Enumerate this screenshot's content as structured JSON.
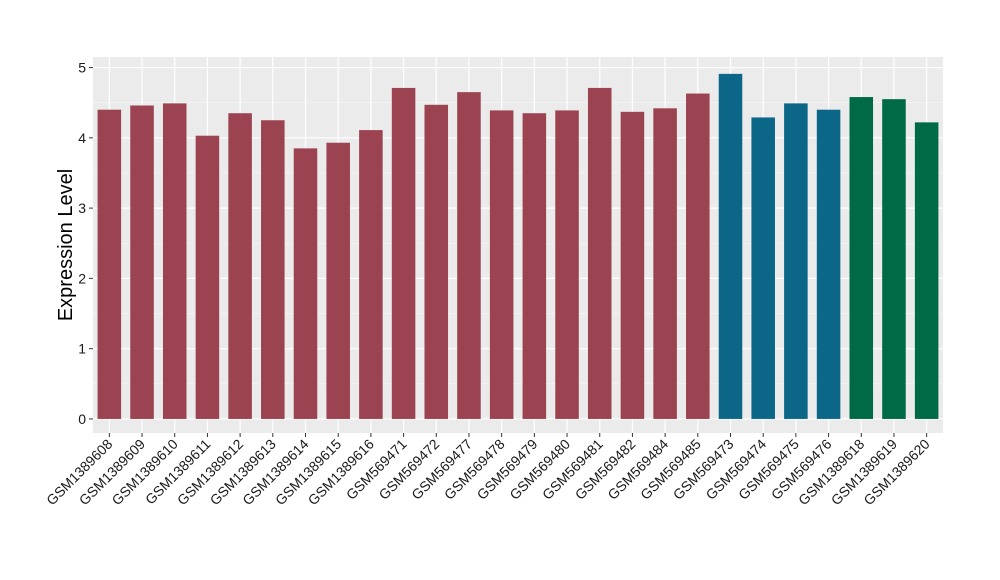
{
  "chart_data": {
    "type": "bar",
    "ylabel": "Expression Level",
    "xlabel": "",
    "ylim": [
      -0.2,
      5.15
    ],
    "yticks": [
      0,
      1,
      2,
      3,
      4,
      5
    ],
    "grid": true,
    "panel_background": "#ebebeb",
    "categories": [
      "GSM1389608",
      "GSM1389609",
      "GSM1389610",
      "GSM1389611",
      "GSM1389612",
      "GSM1389613",
      "GSM1389614",
      "GSM1389615",
      "GSM1389616",
      "GSM569471",
      "GSM569472",
      "GSM569477",
      "GSM569478",
      "GSM569479",
      "GSM569480",
      "GSM569481",
      "GSM569482",
      "GSM569484",
      "GSM569485",
      "GSM569473",
      "GSM569474",
      "GSM569475",
      "GSM569476",
      "GSM1389618",
      "GSM1389619",
      "GSM1389620"
    ],
    "values": [
      4.4,
      4.46,
      4.49,
      4.03,
      4.35,
      4.25,
      3.85,
      3.93,
      4.11,
      4.71,
      4.47,
      4.65,
      4.39,
      4.35,
      4.39,
      4.71,
      4.37,
      4.42,
      4.63,
      4.91,
      4.29,
      4.49,
      4.4,
      4.58,
      4.55,
      4.22
    ],
    "bar_colors": [
      "#9b4350",
      "#9b4350",
      "#9b4350",
      "#9b4350",
      "#9b4350",
      "#9b4350",
      "#9b4350",
      "#9b4350",
      "#9b4350",
      "#9b4350",
      "#9b4350",
      "#9b4350",
      "#9b4350",
      "#9b4350",
      "#9b4350",
      "#9b4350",
      "#9b4350",
      "#9b4350",
      "#9b4350",
      "#0b6688",
      "#0b6688",
      "#0b6688",
      "#0b6688",
      "#006a47",
      "#006a47",
      "#006a47"
    ]
  }
}
